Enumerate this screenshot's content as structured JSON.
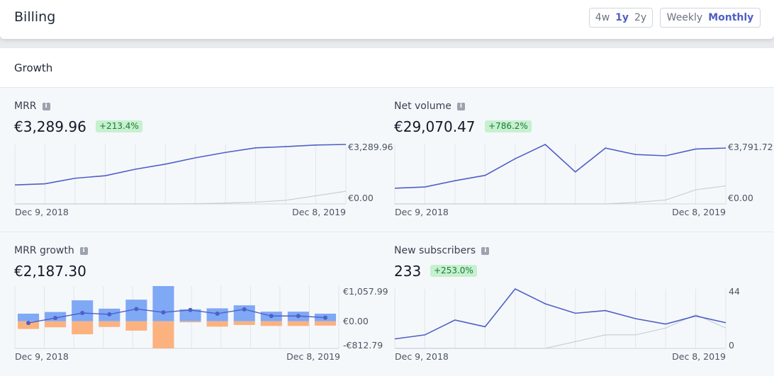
{
  "header": {
    "title": "Billing",
    "range_options": [
      "4w",
      "1y",
      "2y"
    ],
    "range_selected": "1y",
    "interval_options": [
      "Weekly",
      "Monthly"
    ],
    "interval_selected": "Monthly"
  },
  "panel": {
    "title": "Growth"
  },
  "colors": {
    "primary": "#4f5fc6",
    "previous": "#c9ced6",
    "positive_bar": "#7fa8f5",
    "negative_bar": "#fbb27f",
    "badge_bg": "#c6f0cf",
    "badge_text": "#1b7a34"
  },
  "cards": {
    "mrr": {
      "label": "MRR",
      "info_icon": "info-icon",
      "value": "€3,289.96",
      "change": "+213.4%",
      "axis_top": "€3,289.96",
      "axis_bottom": "€0.00",
      "x_start": "Dec 9, 2018",
      "x_end": "Dec 8, 2019"
    },
    "net_volume": {
      "label": "Net volume",
      "info_icon": "info-icon",
      "value": "€29,070.47",
      "change": "+786.2%",
      "axis_top": "€3,791.72",
      "axis_bottom": "€0.00",
      "x_start": "Dec 9, 2018",
      "x_end": "Dec 8, 2019"
    },
    "mrr_growth": {
      "label": "MRR growth",
      "info_icon": "info-icon",
      "value": "€2,187.30",
      "axis_top": "€1,057.99",
      "axis_mid": "€0.00",
      "axis_bottom": "-€812.79",
      "x_start": "Dec 9, 2018",
      "x_end": "Dec 8, 2019"
    },
    "new_subscribers": {
      "label": "New subscribers",
      "info_icon": "info-icon",
      "value": "233",
      "change": "+253.0%",
      "axis_top": "44",
      "axis_bottom": "0",
      "x_start": "Dec 9, 2018",
      "x_end": "Dec 8, 2019"
    }
  },
  "chart_data": [
    {
      "type": "line",
      "title": "MRR",
      "x": [
        "Dec 9, 2018",
        "",
        "",
        "",
        "",
        "",
        "",
        "",
        "",
        "",
        "",
        "Dec 8, 2019"
      ],
      "ylim": [
        0,
        3289.96
      ],
      "series": [
        {
          "values": [
            1050,
            1115,
            1420,
            1560,
            1920,
            2200,
            2550,
            2850,
            3100,
            3170,
            3260,
            3289.96
          ]
        },
        {
          "values": [
            0,
            0,
            0,
            0,
            0,
            0,
            10,
            50,
            100,
            200,
            450,
            700
          ]
        }
      ]
    },
    {
      "type": "line",
      "title": "Net volume",
      "x": [
        "Dec 9, 2018",
        "",
        "",
        "",
        "",
        "",
        "",
        "",
        "",
        "",
        "",
        "Dec 8, 2019"
      ],
      "ylim": [
        0,
        3791.72
      ],
      "series": [
        {
          "values": [
            1000,
            1080,
            1480,
            1820,
            2880,
            3791.72,
            2040,
            3560,
            3150,
            3070,
            3500,
            3560
          ]
        },
        {
          "values": [
            0,
            0,
            0,
            0,
            0,
            0,
            0,
            0,
            100,
            250,
            900,
            1150
          ]
        }
      ]
    },
    {
      "type": "bar",
      "title": "MRR growth",
      "x": [
        "Dec 9, 2018",
        "",
        "",
        "",
        "",
        "",
        "",
        "",
        "",
        "",
        "",
        "Dec 8, 2019"
      ],
      "ylim": [
        -812.79,
        1057.99
      ],
      "series": [
        {
          "values": [
            230,
            280,
            630,
            380,
            650,
            1057.99,
            360,
            390,
            480,
            290,
            290,
            230
          ]
        },
        {
          "values": [
            -230,
            -180,
            -390,
            -170,
            -280,
            -812.79,
            -30,
            -160,
            -110,
            -140,
            -140,
            -130
          ]
        }
      ],
      "line_values": [
        -50,
        100,
        250,
        210,
        370,
        270,
        340,
        230,
        360,
        160,
        160,
        110
      ]
    },
    {
      "type": "line",
      "title": "New subscribers",
      "x": [
        "Dec 9, 2018",
        "",
        "",
        "",
        "",
        "",
        "",
        "",
        "",
        "",
        "",
        "Dec 8, 2019"
      ],
      "ylim": [
        0,
        44
      ],
      "series": [
        {
          "values": [
            7,
            10,
            21,
            16,
            44,
            33,
            26,
            28,
            22,
            18,
            24,
            19
          ]
        },
        {
          "values": [
            0,
            0,
            0,
            0,
            0,
            0,
            5,
            10,
            10,
            15,
            25,
            15
          ]
        }
      ]
    }
  ]
}
